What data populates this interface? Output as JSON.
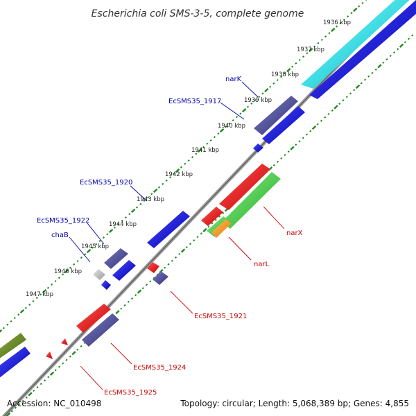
{
  "title": "Escherichia coli SMS-3-5, complete genome",
  "accession": "Accession: NC_010498",
  "summary": "Topology: circular; Length: 5,068,389 bp; Genes: 4,855",
  "ticks": [
    {
      "label": "1936 kbp"
    },
    {
      "label": "1937 kbp"
    },
    {
      "label": "1938 kbp"
    },
    {
      "label": "1939 kbp"
    },
    {
      "label": "1940 kbp"
    },
    {
      "label": "1941 kbp"
    },
    {
      "label": "1942 kbp"
    },
    {
      "label": "1943 kbp"
    },
    {
      "label": "1944 kbp"
    },
    {
      "label": "1945 kbp"
    },
    {
      "label": "1946 kbp"
    },
    {
      "label": "1947 kbp"
    }
  ],
  "gene_labels": {
    "narK": "narK",
    "ec1917": "EcSMS35_1917",
    "ec1920": "EcSMS35_1920",
    "ec1922": "EcSMS35_1922",
    "chaB": "chaB",
    "narX": "narX",
    "narL": "narL",
    "ec1921": "EcSMS35_1921",
    "ec1924": "EcSMS35_1924",
    "ec1925": "EcSMS35_1925"
  },
  "colors": {
    "backbone": "#808080",
    "tick_dots": "#1a8a1a",
    "blue": "#0000ee",
    "navy": "#4a4a9a",
    "cyan": "#00e5e5",
    "red": "#ee0000",
    "green": "#44cc44",
    "orange": "#ff9900",
    "olive": "#66881e",
    "gray": "#bbbbbb",
    "label_blue": "#0000aa",
    "label_red": "#cc0000"
  }
}
